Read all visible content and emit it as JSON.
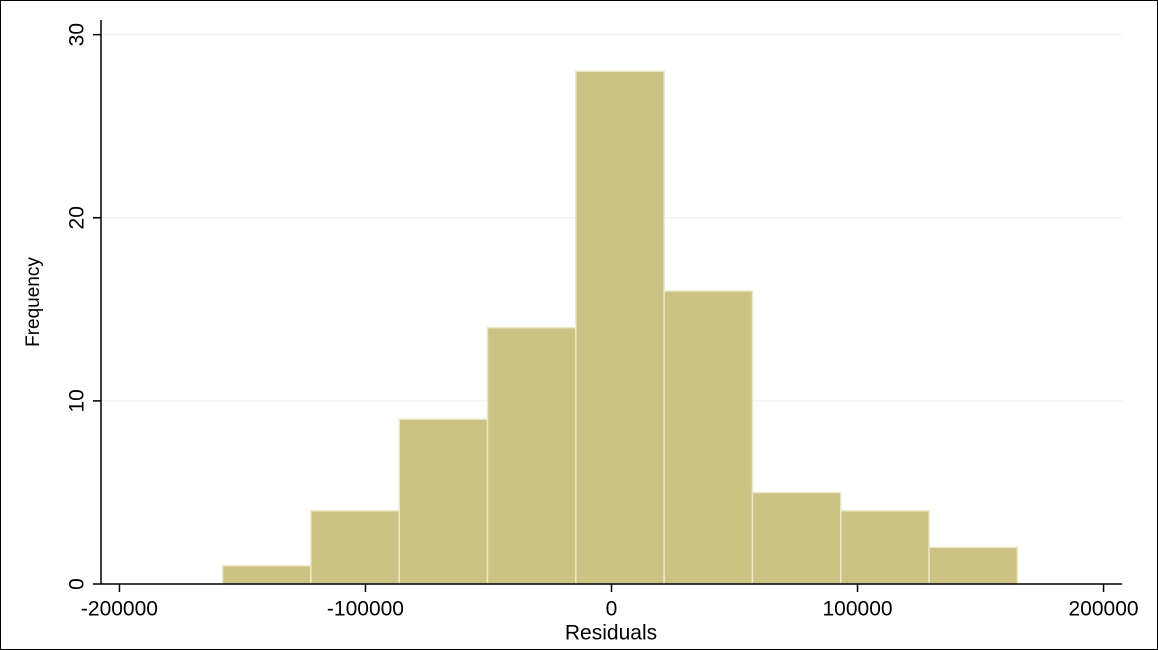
{
  "chart_data": {
    "type": "histogram",
    "xlabel": "Residuals",
    "ylabel": "Frequency",
    "bins": [
      -158100,
      -122200,
      -86300,
      -50400,
      -14500,
      21400,
      57300,
      93200,
      129100,
      165000
    ],
    "values": [
      1,
      4,
      9,
      14,
      28,
      16,
      5,
      4,
      2
    ],
    "color": "#cbc283",
    "edgecolor": "#ece8c8",
    "xlim": [
      -207500,
      207500
    ],
    "xticks": [
      -200000,
      -100000,
      0,
      100000,
      200000
    ],
    "ylim": [
      0,
      30.8
    ],
    "yticks": [
      0,
      10,
      20,
      30
    ],
    "grid": true
  }
}
